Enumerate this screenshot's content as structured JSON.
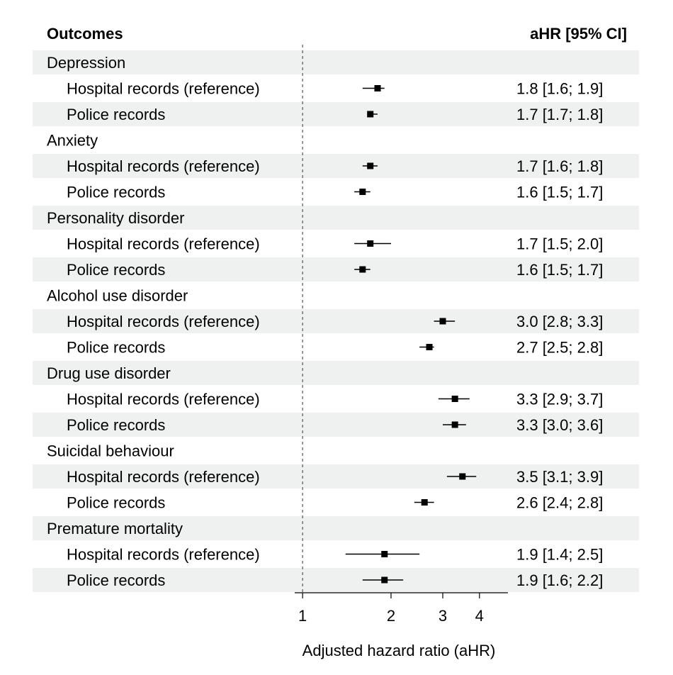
{
  "chart_data": {
    "type": "forest",
    "columns": {
      "left": "Outcomes",
      "right": "aHR [95% CI]"
    },
    "xlabel": "Adjusted hazard ratio (aHR)",
    "x_scale": "log",
    "xlim": [
      0.94,
      5.0
    ],
    "x_ticks": [
      1,
      2,
      3,
      4
    ],
    "reference_line": 1,
    "groups": [
      {
        "outcome": "Depression",
        "rows": [
          {
            "label": "Hospital records (reference)",
            "estimate": 1.8,
            "lower": 1.6,
            "upper": 1.9,
            "text": "1.8 [1.6; 1.9]"
          },
          {
            "label": "Police records",
            "estimate": 1.7,
            "lower": 1.7,
            "upper": 1.8,
            "text": "1.7 [1.7; 1.8]"
          }
        ]
      },
      {
        "outcome": "Anxiety",
        "rows": [
          {
            "label": "Hospital records (reference)",
            "estimate": 1.7,
            "lower": 1.6,
            "upper": 1.8,
            "text": "1.7 [1.6; 1.8]"
          },
          {
            "label": "Police records",
            "estimate": 1.6,
            "lower": 1.5,
            "upper": 1.7,
            "text": "1.6 [1.5; 1.7]"
          }
        ]
      },
      {
        "outcome": "Personality disorder",
        "rows": [
          {
            "label": "Hospital records (reference)",
            "estimate": 1.7,
            "lower": 1.5,
            "upper": 2.0,
            "text": "1.7 [1.5; 2.0]"
          },
          {
            "label": "Police records",
            "estimate": 1.6,
            "lower": 1.5,
            "upper": 1.7,
            "text": "1.6 [1.5; 1.7]"
          }
        ]
      },
      {
        "outcome": "Alcohol use disorder",
        "rows": [
          {
            "label": "Hospital records (reference)",
            "estimate": 3.0,
            "lower": 2.8,
            "upper": 3.3,
            "text": "3.0 [2.8; 3.3]"
          },
          {
            "label": "Police records",
            "estimate": 2.7,
            "lower": 2.5,
            "upper": 2.8,
            "text": "2.7 [2.5; 2.8]"
          }
        ]
      },
      {
        "outcome": "Drug use disorder",
        "rows": [
          {
            "label": "Hospital records (reference)",
            "estimate": 3.3,
            "lower": 2.9,
            "upper": 3.7,
            "text": "3.3 [2.9; 3.7]"
          },
          {
            "label": "Police records",
            "estimate": 3.3,
            "lower": 3.0,
            "upper": 3.6,
            "text": "3.3 [3.0; 3.6]"
          }
        ]
      },
      {
        "outcome": "Suicidal behaviour",
        "rows": [
          {
            "label": "Hospital records (reference)",
            "estimate": 3.5,
            "lower": 3.1,
            "upper": 3.9,
            "text": "3.5 [3.1; 3.9]"
          },
          {
            "label": "Police records",
            "estimate": 2.6,
            "lower": 2.4,
            "upper": 2.8,
            "text": "2.6 [2.4; 2.8]"
          }
        ]
      },
      {
        "outcome": "Premature mortality",
        "rows": [
          {
            "label": "Hospital records (reference)",
            "estimate": 1.9,
            "lower": 1.4,
            "upper": 2.5,
            "text": "1.9 [1.4; 2.5]"
          },
          {
            "label": "Police records",
            "estimate": 1.9,
            "lower": 1.6,
            "upper": 2.2,
            "text": "1.9 [1.6; 2.2]"
          }
        ]
      }
    ],
    "colors": {
      "stripe": "#eff1f0",
      "marker": "#000000",
      "reference_line": "#555555"
    }
  }
}
